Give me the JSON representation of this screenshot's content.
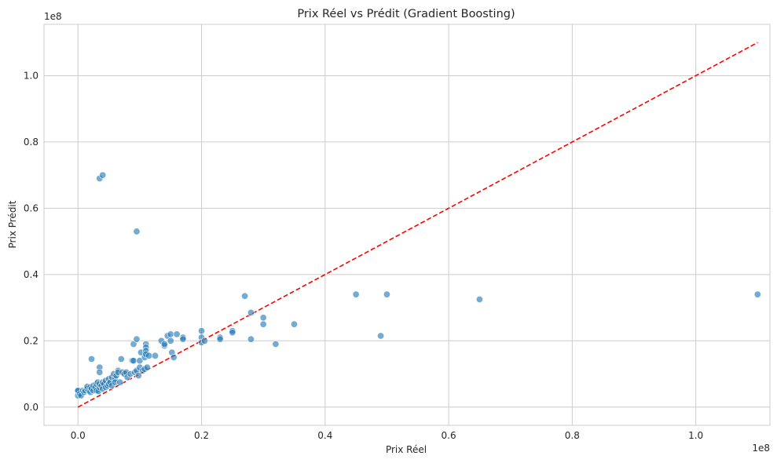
{
  "chart_data": {
    "type": "scatter",
    "title": "Prix Réel vs Prédit (Gradient Boosting)",
    "xlabel": "Prix Réel",
    "ylabel": "Prix Prédit",
    "x_offset_text": "1e8",
    "y_offset_text": "1e8",
    "xlim": [
      -0.055,
      1.12
    ],
    "ylim": [
      -0.055,
      1.155
    ],
    "xticks": [
      0.0,
      0.2,
      0.4,
      0.6,
      0.8,
      1.0
    ],
    "xtick_labels": [
      "0.0",
      "0.2",
      "0.4",
      "0.6",
      "0.8",
      "1.0"
    ],
    "yticks": [
      0.0,
      0.2,
      0.4,
      0.6,
      0.8,
      1.0
    ],
    "ytick_labels": [
      "0.0",
      "0.2",
      "0.4",
      "0.6",
      "0.8",
      "1.0"
    ],
    "grid": true,
    "colors": {
      "points": "#1f77b4",
      "reference_line": "#ff0000",
      "grid": "#cccccc",
      "spine": "#cccccc"
    },
    "reference_line": {
      "style": "dashed",
      "x": [
        0.0,
        1.1
      ],
      "y": [
        0.0,
        1.1
      ]
    },
    "points": [
      [
        0.0,
        0.048
      ],
      [
        0.0,
        0.035
      ],
      [
        0.0,
        0.05
      ],
      [
        0.003,
        0.04
      ],
      [
        0.005,
        0.035
      ],
      [
        0.008,
        0.05
      ],
      [
        0.01,
        0.045
      ],
      [
        0.012,
        0.05
      ],
      [
        0.015,
        0.055
      ],
      [
        0.015,
        0.062
      ],
      [
        0.018,
        0.05
      ],
      [
        0.02,
        0.045
      ],
      [
        0.02,
        0.06
      ],
      [
        0.022,
        0.055
      ],
      [
        0.025,
        0.05
      ],
      [
        0.025,
        0.065
      ],
      [
        0.028,
        0.06
      ],
      [
        0.03,
        0.07
      ],
      [
        0.03,
        0.05
      ],
      [
        0.032,
        0.075
      ],
      [
        0.033,
        0.048
      ],
      [
        0.035,
        0.06
      ],
      [
        0.035,
        0.07
      ],
      [
        0.038,
        0.065
      ],
      [
        0.04,
        0.055
      ],
      [
        0.04,
        0.075
      ],
      [
        0.042,
        0.07
      ],
      [
        0.045,
        0.08
      ],
      [
        0.045,
        0.06
      ],
      [
        0.048,
        0.065
      ],
      [
        0.05,
        0.085
      ],
      [
        0.05,
        0.07
      ],
      [
        0.052,
        0.075
      ],
      [
        0.055,
        0.09
      ],
      [
        0.055,
        0.065
      ],
      [
        0.058,
        0.1
      ],
      [
        0.06,
        0.085
      ],
      [
        0.06,
        0.075
      ],
      [
        0.062,
        0.095
      ],
      [
        0.065,
        0.11
      ],
      [
        0.065,
        0.105
      ],
      [
        0.068,
        0.075
      ],
      [
        0.07,
        0.145
      ],
      [
        0.072,
        0.105
      ],
      [
        0.075,
        0.1
      ],
      [
        0.078,
        0.105
      ],
      [
        0.08,
        0.09
      ],
      [
        0.085,
        0.1
      ],
      [
        0.088,
        0.14
      ],
      [
        0.09,
        0.19
      ],
      [
        0.09,
        0.14
      ],
      [
        0.092,
        0.105
      ],
      [
        0.095,
        0.205
      ],
      [
        0.095,
        0.11
      ],
      [
        0.098,
        0.095
      ],
      [
        0.1,
        0.12
      ],
      [
        0.1,
        0.14
      ],
      [
        0.102,
        0.165
      ],
      [
        0.105,
        0.11
      ],
      [
        0.108,
        0.115
      ],
      [
        0.108,
        0.15
      ],
      [
        0.11,
        0.19
      ],
      [
        0.11,
        0.18
      ],
      [
        0.11,
        0.17
      ],
      [
        0.11,
        0.16
      ],
      [
        0.112,
        0.12
      ],
      [
        0.115,
        0.155
      ],
      [
        0.125,
        0.155
      ],
      [
        0.135,
        0.2
      ],
      [
        0.14,
        0.185
      ],
      [
        0.14,
        0.19
      ],
      [
        0.145,
        0.215
      ],
      [
        0.15,
        0.22
      ],
      [
        0.15,
        0.2
      ],
      [
        0.152,
        0.165
      ],
      [
        0.155,
        0.15
      ],
      [
        0.16,
        0.22
      ],
      [
        0.17,
        0.21
      ],
      [
        0.17,
        0.205
      ],
      [
        0.2,
        0.23
      ],
      [
        0.2,
        0.21
      ],
      [
        0.2,
        0.195
      ],
      [
        0.205,
        0.2
      ],
      [
        0.23,
        0.21
      ],
      [
        0.23,
        0.205
      ],
      [
        0.25,
        0.23
      ],
      [
        0.25,
        0.225
      ],
      [
        0.27,
        0.335
      ],
      [
        0.28,
        0.285
      ],
      [
        0.28,
        0.205
      ],
      [
        0.3,
        0.27
      ],
      [
        0.3,
        0.25
      ],
      [
        0.32,
        0.19
      ],
      [
        0.35,
        0.25
      ],
      [
        0.45,
        0.34
      ],
      [
        0.49,
        0.215
      ],
      [
        0.5,
        0.34
      ],
      [
        0.65,
        0.325
      ],
      [
        1.1,
        0.34
      ],
      [
        0.022,
        0.145
      ],
      [
        0.035,
        0.12
      ],
      [
        0.035,
        0.105
      ],
      [
        0.035,
        0.69
      ],
      [
        0.04,
        0.7
      ],
      [
        0.095,
        0.53
      ]
    ]
  }
}
